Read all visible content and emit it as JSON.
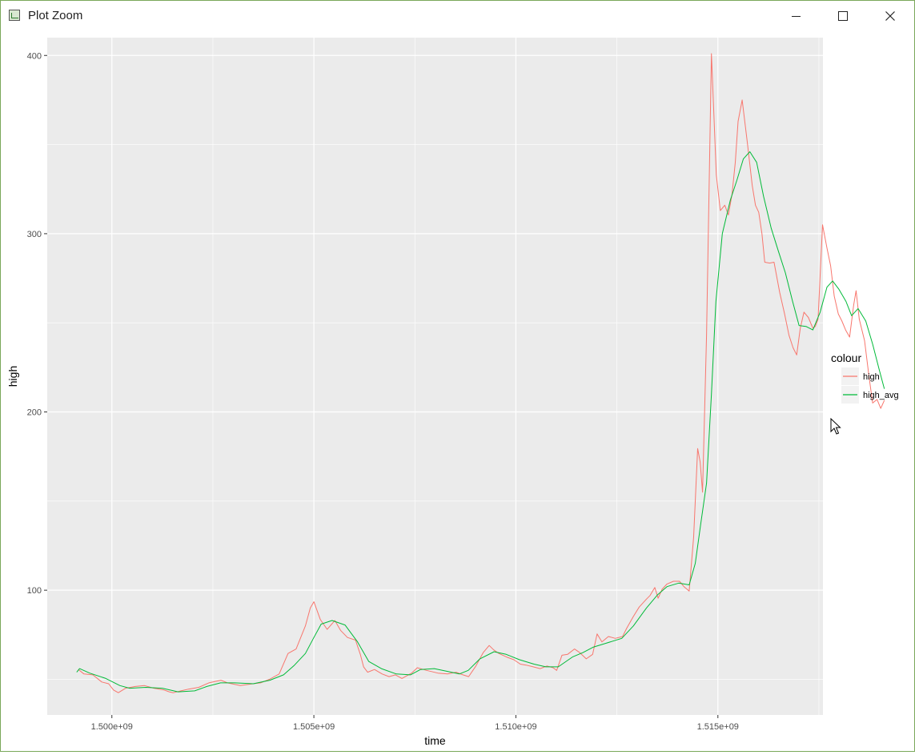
{
  "window": {
    "title": "Plot Zoom",
    "icons": [
      "app-plot-icon",
      "minimize-icon",
      "maximize-icon",
      "close-icon"
    ]
  },
  "colors": {
    "panel_bg": "#EBEBEB",
    "grid": "#FFFFFF",
    "high": "#F8766D",
    "high_avg": "#00BA38",
    "axis_text": "#4D4D4D"
  },
  "chart_data": {
    "type": "line",
    "title": "",
    "xlabel": "time",
    "ylabel": "high",
    "xlim": [
      1498400000,
      1517600000
    ],
    "ylim": [
      30,
      410
    ],
    "x_ticks": [
      1500000000,
      1505000000,
      1510000000,
      1515000000
    ],
    "x_tick_labels": [
      "1.500e+09",
      "1.505e+09",
      "1.510e+09",
      "1.515e+09"
    ],
    "y_ticks": [
      100,
      200,
      300,
      400
    ],
    "y_tick_labels": [
      "100",
      "200",
      "300",
      "400"
    ],
    "grid": true,
    "legend": {
      "title": "colour",
      "position": "right",
      "entries": [
        "high",
        "high_avg"
      ]
    },
    "series": [
      {
        "name": "high",
        "color": "#F8766D",
        "points": [
          [
            1499170000,
            55.5
          ],
          [
            1499310000,
            53.0
          ],
          [
            1499530000,
            52.5
          ],
          [
            1499750000,
            48.5
          ],
          [
            1499920000,
            47.5
          ],
          [
            1500040000,
            44.0
          ],
          [
            1500160000,
            42.5
          ],
          [
            1500340000,
            45.0
          ],
          [
            1500580000,
            46.0
          ],
          [
            1500810000,
            46.5
          ],
          [
            1501040000,
            45.0
          ],
          [
            1501290000,
            44.0
          ],
          [
            1501420000,
            43.0
          ],
          [
            1501520000,
            42.5
          ],
          [
            1501710000,
            43.5
          ],
          [
            1501900000,
            44.5
          ],
          [
            1502150000,
            45.5
          ],
          [
            1502400000,
            48.0
          ],
          [
            1502700000,
            49.5
          ],
          [
            1502860000,
            48.0
          ],
          [
            1503180000,
            46.5
          ],
          [
            1503490000,
            47.5
          ],
          [
            1503680000,
            48.0
          ],
          [
            1503900000,
            50.0
          ],
          [
            1504140000,
            53.0
          ],
          [
            1504360000,
            64.5
          ],
          [
            1504560000,
            67.0
          ],
          [
            1504790000,
            80.0
          ],
          [
            1504910000,
            90.0
          ],
          [
            1505000000,
            93.5
          ],
          [
            1505160000,
            83.5
          ],
          [
            1505330000,
            78.0
          ],
          [
            1505520000,
            83.0
          ],
          [
            1505660000,
            77.5
          ],
          [
            1505830000,
            73.5
          ],
          [
            1506030000,
            72.0
          ],
          [
            1506150000,
            64.0
          ],
          [
            1506230000,
            57.0
          ],
          [
            1506330000,
            54.0
          ],
          [
            1506500000,
            55.5
          ],
          [
            1506690000,
            53.0
          ],
          [
            1506860000,
            51.5
          ],
          [
            1507020000,
            52.5
          ],
          [
            1507180000,
            50.5
          ],
          [
            1507420000,
            53.5
          ],
          [
            1507560000,
            56.5
          ],
          [
            1507790000,
            55.0
          ],
          [
            1508070000,
            53.5
          ],
          [
            1508310000,
            53.0
          ],
          [
            1508520000,
            54.0
          ],
          [
            1508690000,
            52.5
          ],
          [
            1508830000,
            51.5
          ],
          [
            1509010000,
            57.5
          ],
          [
            1509190000,
            65.0
          ],
          [
            1509340000,
            69.0
          ],
          [
            1509450000,
            66.5
          ],
          [
            1509580000,
            64.5
          ],
          [
            1509770000,
            62.5
          ],
          [
            1509950000,
            61.0
          ],
          [
            1510110000,
            58.5
          ],
          [
            1510250000,
            58.0
          ],
          [
            1510430000,
            57.0
          ],
          [
            1510600000,
            56.0
          ],
          [
            1510770000,
            57.5
          ],
          [
            1510920000,
            56.5
          ],
          [
            1511010000,
            55.0
          ],
          [
            1511140000,
            63.5
          ],
          [
            1511280000,
            64.0
          ],
          [
            1511450000,
            67.0
          ],
          [
            1511580000,
            65.0
          ],
          [
            1511740000,
            61.5
          ],
          [
            1511900000,
            64.0
          ],
          [
            1512010000,
            75.5
          ],
          [
            1512130000,
            71.0
          ],
          [
            1512290000,
            74.0
          ],
          [
            1512460000,
            73.0
          ],
          [
            1512640000,
            74.0
          ],
          [
            1512740000,
            78.5
          ],
          [
            1512900000,
            85.0
          ],
          [
            1513050000,
            90.5
          ],
          [
            1513230000,
            95.0
          ],
          [
            1513320000,
            97.0
          ],
          [
            1513440000,
            101.5
          ],
          [
            1513520000,
            95.5
          ],
          [
            1513620000,
            100.5
          ],
          [
            1513740000,
            103.5
          ],
          [
            1513900000,
            105.0
          ],
          [
            1514050000,
            105.0
          ],
          [
            1514160000,
            102.0
          ],
          [
            1514290000,
            99.5
          ],
          [
            1514400000,
            130.0
          ],
          [
            1514500000,
            179.5
          ],
          [
            1514560000,
            172.0
          ],
          [
            1514620000,
            155.0
          ],
          [
            1514720000,
            243.0
          ],
          [
            1514840000,
            401.0
          ],
          [
            1514960000,
            333.0
          ],
          [
            1515060000,
            313.0
          ],
          [
            1515170000,
            316.0
          ],
          [
            1515260000,
            310.5
          ],
          [
            1515350000,
            322.0
          ],
          [
            1515430000,
            340.0
          ],
          [
            1515500000,
            363.0
          ],
          [
            1515600000,
            375.0
          ],
          [
            1515730000,
            351.0
          ],
          [
            1515850000,
            327.0
          ],
          [
            1515930000,
            316.0
          ],
          [
            1516010000,
            312.0
          ],
          [
            1516090000,
            300.0
          ],
          [
            1516160000,
            284.0
          ],
          [
            1516280000,
            283.5
          ],
          [
            1516390000,
            284.0
          ],
          [
            1516530000,
            267.0
          ],
          [
            1516650000,
            255.0
          ],
          [
            1516760000,
            243.0
          ],
          [
            1516860000,
            236.0
          ],
          [
            1516950000,
            232.0
          ],
          [
            1517040000,
            247.0
          ],
          [
            1517130000,
            256.0
          ],
          [
            1517240000,
            253.0
          ],
          [
            1517350000,
            247.0
          ],
          [
            1517410000,
            248.0
          ],
          [
            1517480000,
            252.0
          ],
          [
            1517590000,
            305.0
          ],
          [
            1517700000,
            292.0
          ],
          [
            1517790000,
            282.0
          ],
          [
            1517880000,
            265.0
          ],
          [
            1517980000,
            255.0
          ],
          [
            1518070000,
            251.0
          ],
          [
            1518160000,
            246.0
          ],
          [
            1518260000,
            242.0
          ],
          [
            1518360000,
            260.0
          ],
          [
            1518420000,
            268.0
          ],
          [
            1518500000,
            252.0
          ],
          [
            1518630000,
            240.0
          ],
          [
            1518740000,
            220.0
          ],
          [
            1518830000,
            205.0
          ],
          [
            1518940000,
            207.0
          ],
          [
            1519030000,
            202.0
          ],
          [
            1519120000,
            206.5
          ]
        ]
      },
      {
        "name": "high_avg",
        "color": "#00BA38",
        "points": [
          [
            1499130000,
            54.0
          ],
          [
            1499200000,
            56.0
          ],
          [
            1499450000,
            53.5
          ],
          [
            1499850000,
            50.5
          ],
          [
            1500200000,
            46.5
          ],
          [
            1500440000,
            45.0
          ],
          [
            1500840000,
            45.5
          ],
          [
            1501250000,
            45.0
          ],
          [
            1501640000,
            43.0
          ],
          [
            1502050000,
            43.5
          ],
          [
            1502350000,
            46.0
          ],
          [
            1502690000,
            48.0
          ],
          [
            1503040000,
            48.0
          ],
          [
            1503500000,
            47.5
          ],
          [
            1503910000,
            49.5
          ],
          [
            1504250000,
            52.5
          ],
          [
            1504520000,
            58.0
          ],
          [
            1504790000,
            64.5
          ],
          [
            1505000000,
            73.5
          ],
          [
            1505180000,
            81.0
          ],
          [
            1505450000,
            83.0
          ],
          [
            1505770000,
            80.5
          ],
          [
            1506080000,
            71.0
          ],
          [
            1506360000,
            60.0
          ],
          [
            1506670000,
            56.0
          ],
          [
            1507040000,
            53.0
          ],
          [
            1507390000,
            52.5
          ],
          [
            1507640000,
            55.5
          ],
          [
            1507980000,
            56.0
          ],
          [
            1508300000,
            54.5
          ],
          [
            1508600000,
            53.0
          ],
          [
            1508820000,
            55.0
          ],
          [
            1509110000,
            61.5
          ],
          [
            1509460000,
            65.5
          ],
          [
            1509760000,
            64.0
          ],
          [
            1510090000,
            61.0
          ],
          [
            1510450000,
            58.5
          ],
          [
            1510740000,
            57.0
          ],
          [
            1511050000,
            57.0
          ],
          [
            1511400000,
            62.5
          ],
          [
            1511660000,
            65.0
          ],
          [
            1511910000,
            68.0
          ],
          [
            1512200000,
            70.0
          ],
          [
            1512620000,
            73.0
          ],
          [
            1512910000,
            80.0
          ],
          [
            1513230000,
            90.0
          ],
          [
            1513510000,
            97.5
          ],
          [
            1513740000,
            102.0
          ],
          [
            1514030000,
            104.0
          ],
          [
            1514290000,
            103.0
          ],
          [
            1514440000,
            115.0
          ],
          [
            1514580000,
            138.0
          ],
          [
            1514720000,
            160.0
          ],
          [
            1514840000,
            210.0
          ],
          [
            1514950000,
            262.0
          ],
          [
            1515110000,
            300.0
          ],
          [
            1515310000,
            319.0
          ],
          [
            1515470000,
            330.0
          ],
          [
            1515630000,
            342.0
          ],
          [
            1515790000,
            346.0
          ],
          [
            1515960000,
            340.0
          ],
          [
            1516130000,
            321.0
          ],
          [
            1516320000,
            303.0
          ],
          [
            1516500000,
            290.0
          ],
          [
            1516670000,
            278.0
          ],
          [
            1516850000,
            262.0
          ],
          [
            1517010000,
            248.5
          ],
          [
            1517180000,
            248.0
          ],
          [
            1517350000,
            246.0
          ],
          [
            1517530000,
            256.0
          ],
          [
            1517700000,
            270.0
          ],
          [
            1517840000,
            273.5
          ],
          [
            1517990000,
            269.0
          ],
          [
            1518170000,
            262.0
          ],
          [
            1518310000,
            254.0
          ],
          [
            1518470000,
            258.0
          ],
          [
            1518660000,
            251.0
          ],
          [
            1518830000,
            238.0
          ],
          [
            1519000000,
            223.0
          ],
          [
            1519120000,
            213.0
          ]
        ]
      }
    ]
  }
}
